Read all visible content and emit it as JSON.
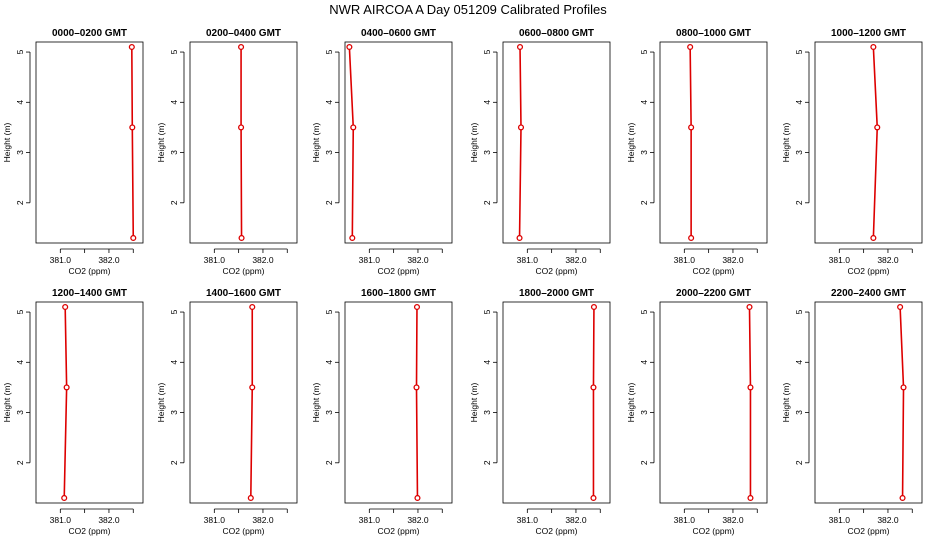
{
  "title": "NWR AIRCOA A  Day 051209  Calibrated Profiles",
  "colors": {
    "series": "#dd0000",
    "axis": "#000000"
  },
  "chart_data": {
    "type": "line",
    "xlabel": "CO2 (ppm)",
    "ylabel": "Height (m)",
    "xlim": [
      380.5,
      382.7
    ],
    "ylim": [
      1.2,
      5.2
    ],
    "xticks": [
      381.0,
      381.5,
      382.0,
      382.5
    ],
    "xtick_labels": [
      "381.0",
      "",
      "382.0",
      ""
    ],
    "yticks": [
      2,
      3,
      4,
      5
    ],
    "ytick_labels": [
      "2",
      "3",
      "4",
      "5"
    ],
    "heights": [
      5.1,
      3.5,
      1.3
    ],
    "panels": [
      {
        "title": "0000–0200 GMT",
        "co2": [
          382.47,
          382.48,
          382.5
        ]
      },
      {
        "title": "0200–0400 GMT",
        "co2": [
          381.55,
          381.55,
          381.56
        ]
      },
      {
        "title": "0400–0600 GMT",
        "co2": [
          380.59,
          380.67,
          380.65
        ]
      },
      {
        "title": "0600–0800 GMT",
        "co2": [
          380.85,
          380.87,
          380.84
        ]
      },
      {
        "title": "0800–1000 GMT",
        "co2": [
          381.12,
          381.14,
          381.14
        ]
      },
      {
        "title": "1000–1200 GMT",
        "co2": [
          381.7,
          381.78,
          381.7
        ]
      },
      {
        "title": "1200–1400 GMT",
        "co2": [
          381.1,
          381.13,
          381.08
        ]
      },
      {
        "title": "1400–1600 GMT",
        "co2": [
          381.78,
          381.78,
          381.75
        ]
      },
      {
        "title": "1600–1800 GMT",
        "co2": [
          381.98,
          381.97,
          381.99
        ]
      },
      {
        "title": "1800–2000 GMT",
        "co2": [
          382.37,
          382.36,
          382.36
        ]
      },
      {
        "title": "2000–2200 GMT",
        "co2": [
          382.34,
          382.36,
          382.36
        ]
      },
      {
        "title": "2200–2400 GMT",
        "co2": [
          382.25,
          382.32,
          382.3
        ]
      }
    ]
  }
}
